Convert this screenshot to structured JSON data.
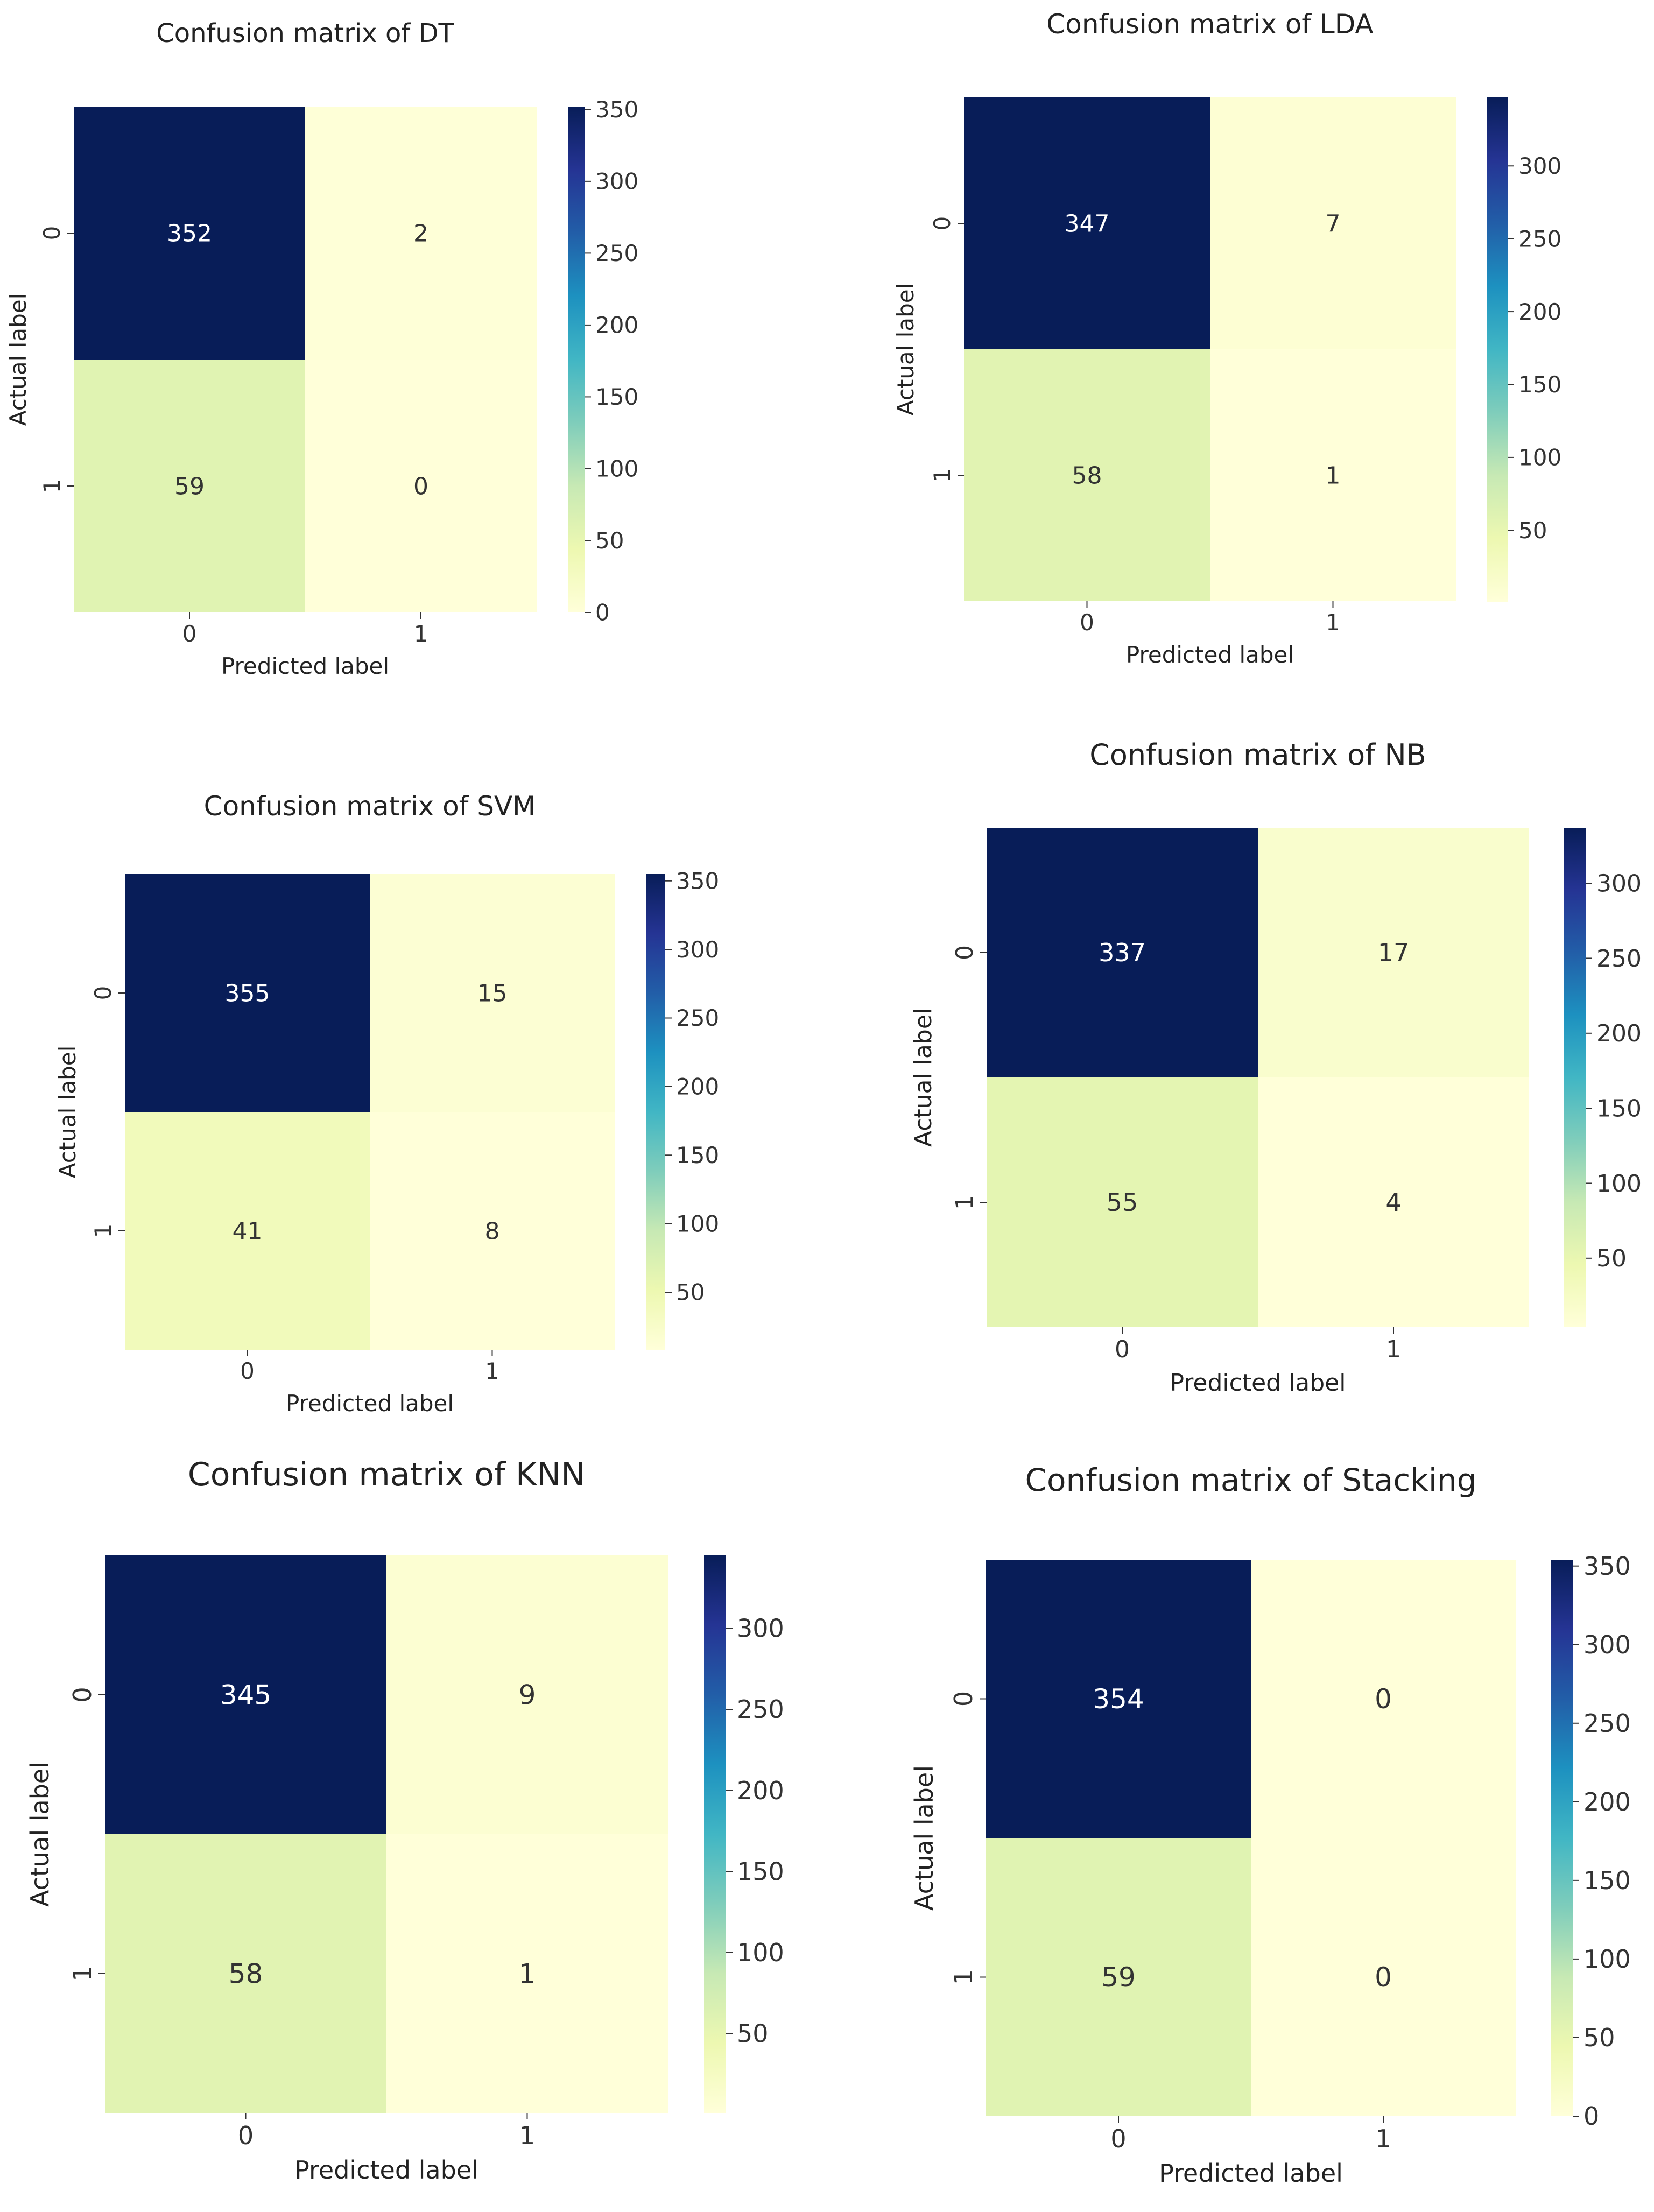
{
  "chart_data": [
    {
      "type": "heatmap",
      "title": "Confusion matrix of DT",
      "xlabel": "Predicted label",
      "ylabel": "Actual label",
      "x_ticks": [
        "0",
        "1"
      ],
      "y_ticks": [
        "0",
        "1"
      ],
      "matrix": [
        [
          352,
          2
        ],
        [
          59,
          0
        ]
      ],
      "colormap": "YlGnBu",
      "colorbar_range": [
        0,
        352
      ],
      "colorbar_ticks": [
        0,
        50,
        100,
        150,
        200,
        250,
        300,
        350
      ]
    },
    {
      "type": "heatmap",
      "title": "Confusion matrix of LDA",
      "xlabel": "Predicted label",
      "ylabel": "Actual label",
      "x_ticks": [
        "0",
        "1"
      ],
      "y_ticks": [
        "0",
        "1"
      ],
      "matrix": [
        [
          347,
          7
        ],
        [
          58,
          1
        ]
      ],
      "colormap": "YlGnBu",
      "colorbar_range": [
        1,
        347
      ],
      "colorbar_ticks": [
        50,
        100,
        150,
        200,
        250,
        300
      ]
    },
    {
      "type": "heatmap",
      "title": "Confusion matrix of SVM",
      "xlabel": "Predicted label",
      "ylabel": "Actual label",
      "x_ticks": [
        "0",
        "1"
      ],
      "y_ticks": [
        "0",
        "1"
      ],
      "matrix": [
        [
          355,
          15
        ],
        [
          41,
          8
        ]
      ],
      "colormap": "YlGnBu",
      "colorbar_range": [
        8,
        355
      ],
      "colorbar_ticks": [
        50,
        100,
        150,
        200,
        250,
        300,
        350
      ]
    },
    {
      "type": "heatmap",
      "title": "Confusion matrix of NB",
      "xlabel": "Predicted label",
      "ylabel": "Actual label",
      "x_ticks": [
        "0",
        "1"
      ],
      "y_ticks": [
        "0",
        "1"
      ],
      "matrix": [
        [
          337,
          17
        ],
        [
          55,
          4
        ]
      ],
      "colormap": "YlGnBu",
      "colorbar_range": [
        4,
        337
      ],
      "colorbar_ticks": [
        50,
        100,
        150,
        200,
        250,
        300
      ]
    },
    {
      "type": "heatmap",
      "title": "Confusion matrix of KNN",
      "xlabel": "Predicted label",
      "ylabel": "Actual label",
      "x_ticks": [
        "0",
        "1"
      ],
      "y_ticks": [
        "0",
        "1"
      ],
      "matrix": [
        [
          345,
          9
        ],
        [
          58,
          1
        ]
      ],
      "colormap": "YlGnBu",
      "colorbar_range": [
        1,
        345
      ],
      "colorbar_ticks": [
        50,
        100,
        150,
        200,
        250,
        300
      ]
    },
    {
      "type": "heatmap",
      "title": "Confusion matrix of Stacking",
      "xlabel": "Predicted label",
      "ylabel": "Actual label",
      "x_ticks": [
        "0",
        "1"
      ],
      "y_ticks": [
        "0",
        "1"
      ],
      "matrix": [
        [
          354,
          0
        ],
        [
          59,
          0
        ]
      ],
      "colormap": "YlGnBu",
      "colorbar_range": [
        0,
        354
      ],
      "colorbar_ticks": [
        0,
        50,
        100,
        150,
        200,
        250,
        300,
        350
      ]
    }
  ]
}
